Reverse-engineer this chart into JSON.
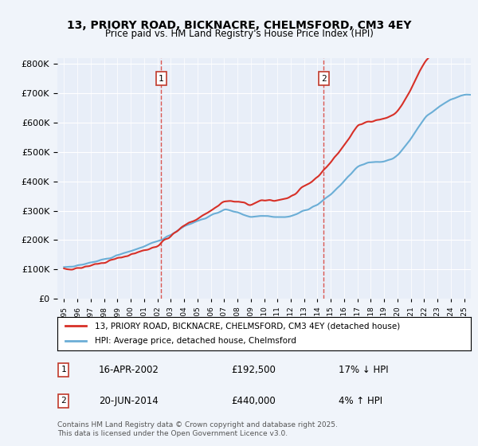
{
  "title": "13, PRIORY ROAD, BICKNACRE, CHELMSFORD, CM3 4EY",
  "subtitle": "Price paid vs. HM Land Registry's House Price Index (HPI)",
  "legend_line1": "13, PRIORY ROAD, BICKNACRE, CHELMSFORD, CM3 4EY (detached house)",
  "legend_line2": "HPI: Average price, detached house, Chelmsford",
  "footer": "Contains HM Land Registry data © Crown copyright and database right 2025.\nThis data is licensed under the Open Government Licence v3.0.",
  "sale1_date": 2002.29,
  "sale1_price": 192500,
  "sale1_label": "16-APR-2002",
  "sale1_pct": "17% ↓ HPI",
  "sale2_date": 2014.47,
  "sale2_price": 440000,
  "sale2_label": "20-JUN-2014",
  "sale2_pct": "4% ↑ HPI",
  "hpi_color": "#6baed6",
  "price_color": "#d73027",
  "vline_color": "#d73027",
  "bg_color": "#f0f4fa",
  "plot_bg": "#e8eef8",
  "ylim": [
    0,
    820000
  ],
  "xlim": [
    1994.5,
    2025.5
  ]
}
